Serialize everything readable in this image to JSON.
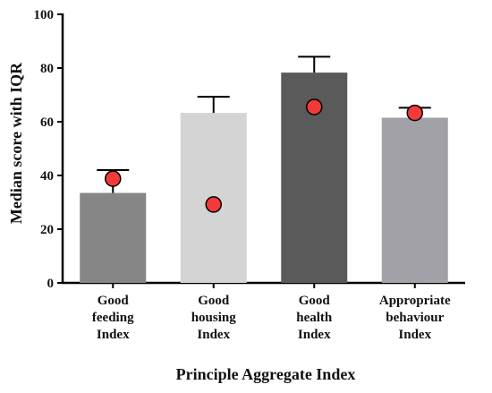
{
  "chart_data": {
    "type": "bar",
    "title": "",
    "xlabel": "Principle Aggregate Index",
    "ylabel": "Median score with IQR",
    "ylim": [
      0,
      100
    ],
    "yticks": [
      0,
      20,
      40,
      60,
      80,
      100
    ],
    "grid": false,
    "legend": "none",
    "categories": [
      [
        "Good",
        "feeding",
        "Index"
      ],
      [
        "Good",
        "housing",
        "Index"
      ],
      [
        "Good",
        "health",
        "Index"
      ],
      [
        "Appropriate",
        "behaviour",
        "Index"
      ]
    ],
    "values": [
      33.5,
      63.3,
      78.3,
      61.5
    ],
    "error_upper": [
      42,
      69.3,
      84.2,
      65.2
    ],
    "points": [
      38.8,
      29.2,
      65.5,
      63.3
    ],
    "bar_colors": [
      "#868686",
      "#d4d4d4",
      "#5a5a5a",
      "#a2a1a7"
    ],
    "point_color": "#f23a3a"
  }
}
